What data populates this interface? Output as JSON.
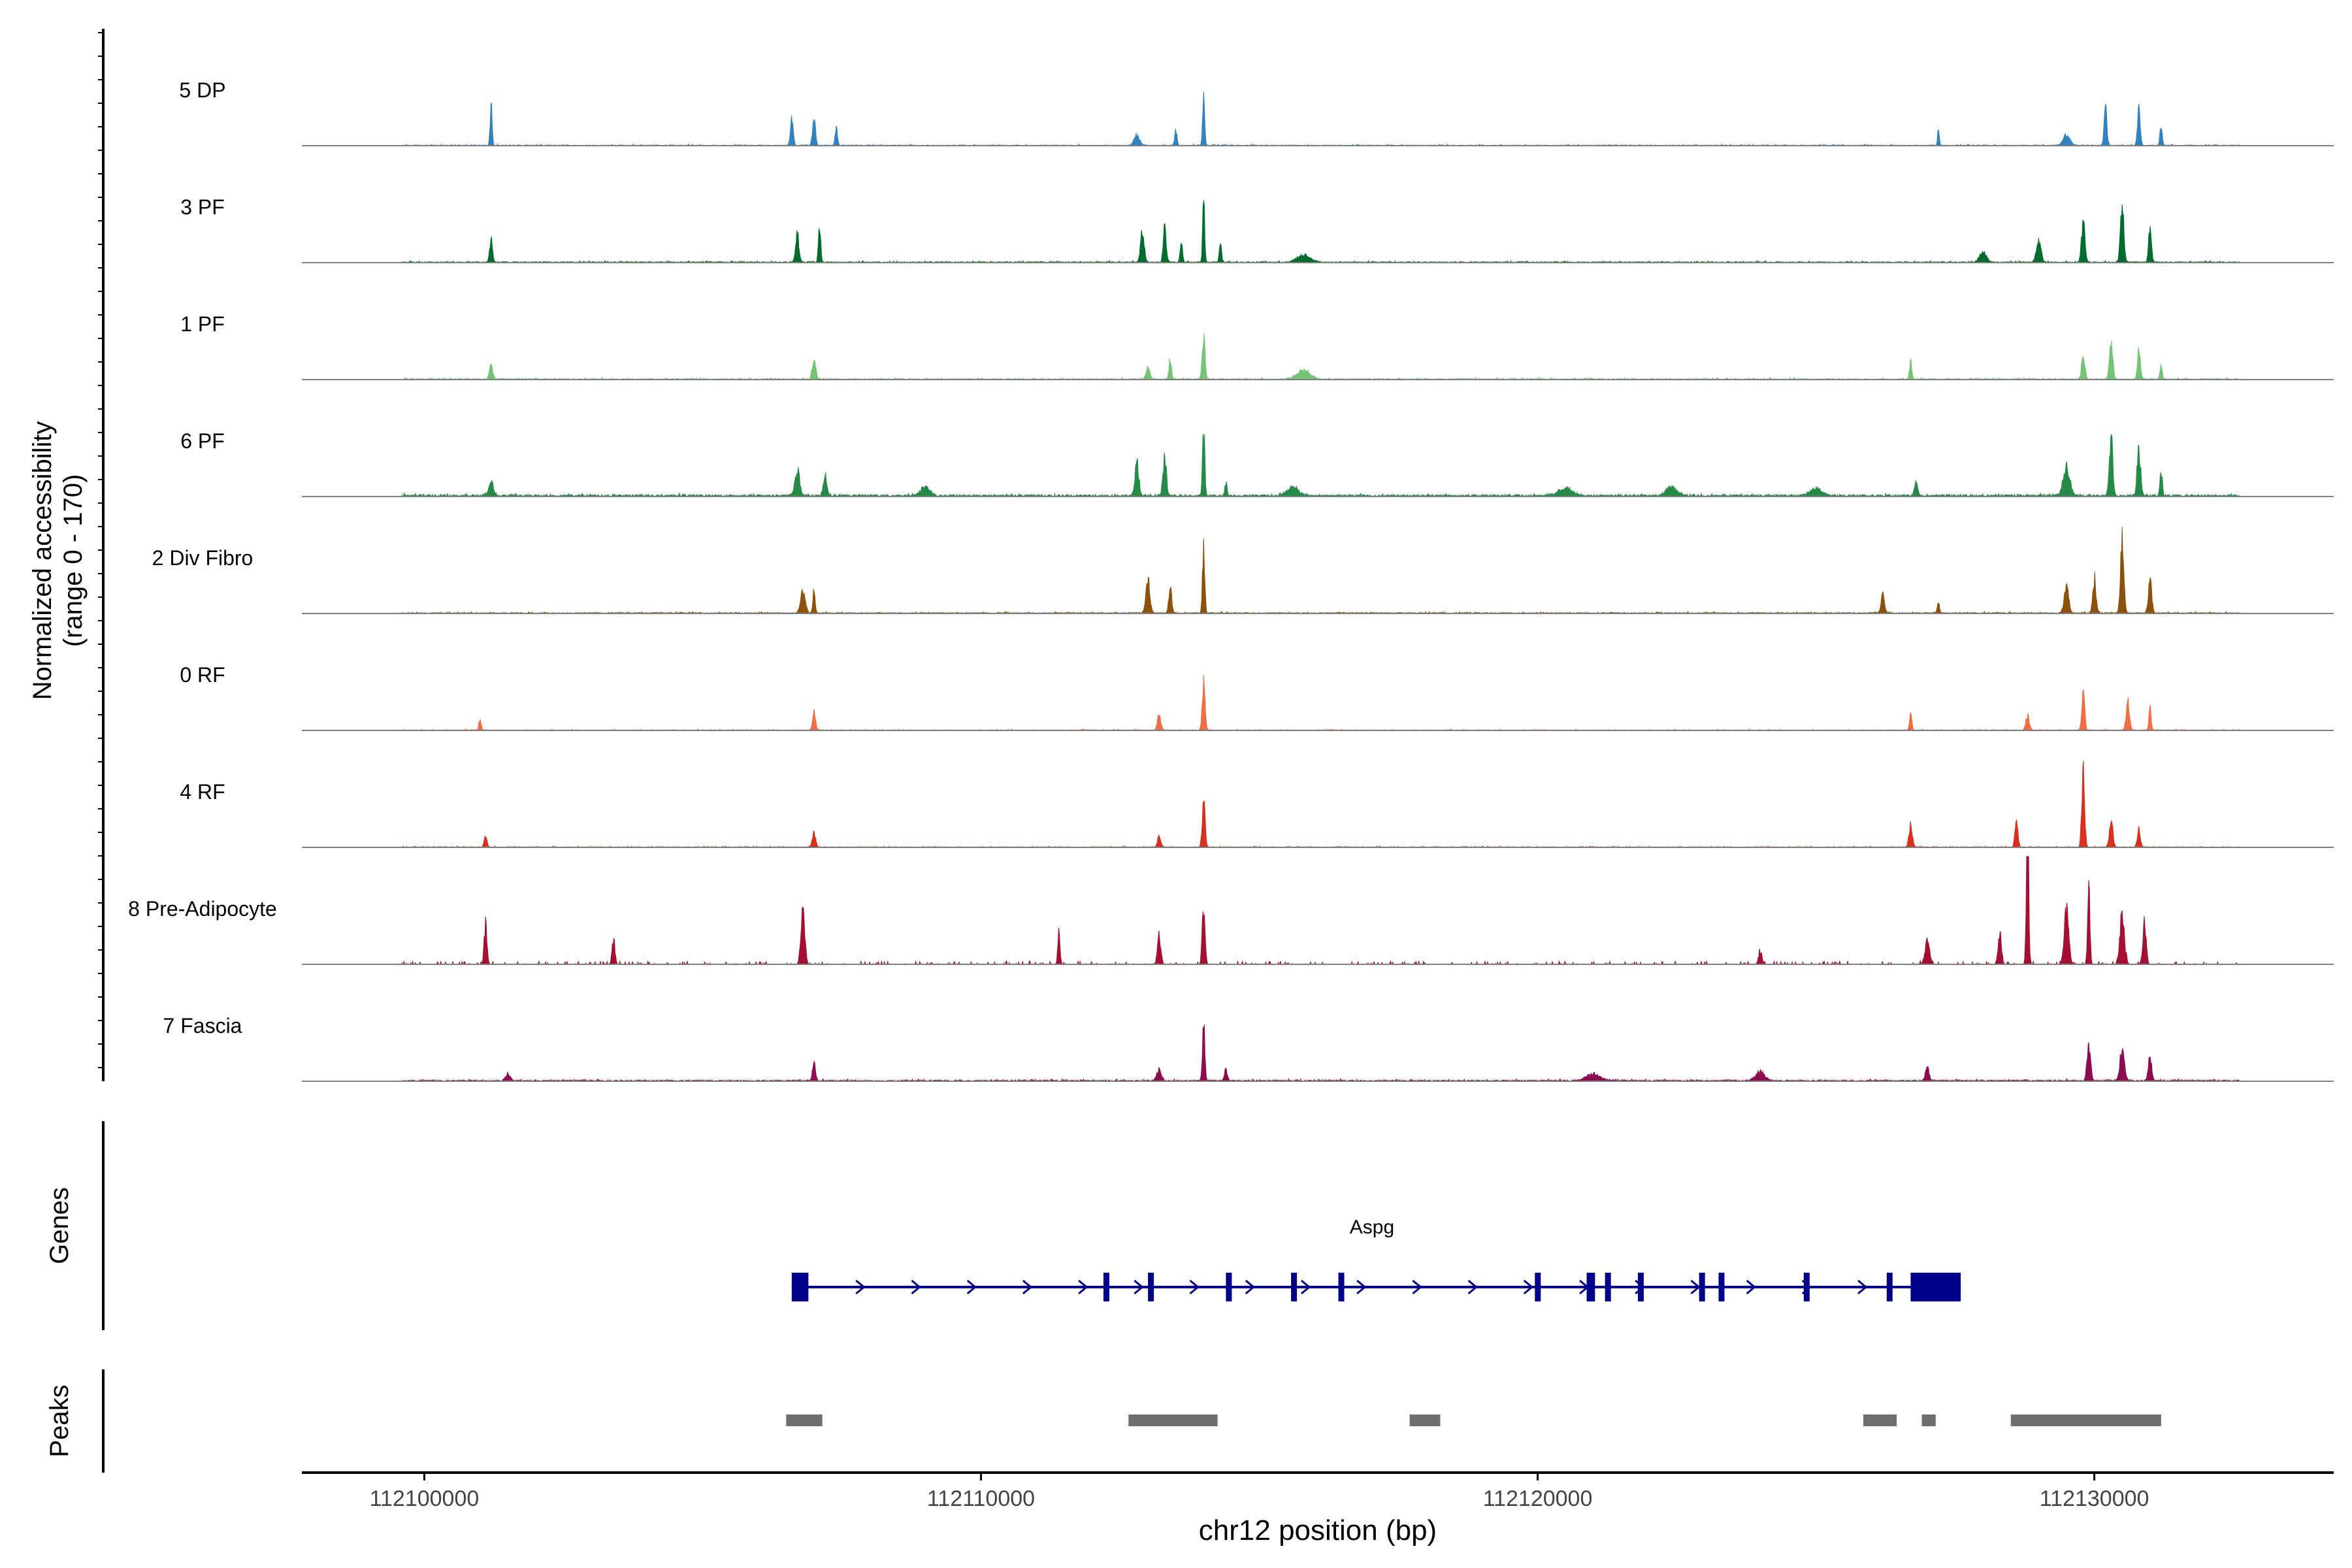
{
  "chart_data": {
    "type": "area",
    "chromosome": "chr12",
    "xlabel": "chr12 position (bp)",
    "ylabel_line1": "Normalized accessibility",
    "ylabel_line2": "(range 0 - 170)",
    "y_range": [
      0,
      170
    ],
    "x_range": [
      112097800,
      112134300
    ],
    "x_ticks": [
      112100000,
      112110000,
      112120000,
      112130000
    ],
    "x_tick_labels": [
      "112100000",
      "112110000",
      "112120000",
      "112130000"
    ],
    "data_extent": [
      112099600,
      112132600
    ],
    "genes_label": "Genes",
    "peaks_label": "Peaks",
    "tracks": [
      {
        "name": "5 DP",
        "color": "#3182BD",
        "base": 2,
        "noise": 3,
        "peaks": [
          [
            112101200,
            110,
            18
          ],
          [
            112106600,
            70,
            25
          ],
          [
            112107000,
            80,
            25
          ],
          [
            112107400,
            55,
            20
          ],
          [
            112112800,
            30,
            50
          ],
          [
            112113500,
            45,
            20
          ],
          [
            112114000,
            140,
            18
          ],
          [
            112127200,
            45,
            15
          ],
          [
            112129500,
            30,
            60
          ],
          [
            112130200,
            100,
            25
          ],
          [
            112130800,
            100,
            25
          ],
          [
            112131200,
            60,
            20
          ]
        ]
      },
      {
        "name": "3 PF",
        "color": "#006D2C",
        "base": 3,
        "noise": 3,
        "peaks": [
          [
            112101200,
            60,
            25
          ],
          [
            112106700,
            80,
            30
          ],
          [
            112107100,
            100,
            20
          ],
          [
            112112900,
            100,
            30
          ],
          [
            112113300,
            110,
            25
          ],
          [
            112113600,
            60,
            20
          ],
          [
            112114000,
            170,
            18
          ],
          [
            112114300,
            50,
            20
          ],
          [
            112115800,
            20,
            120
          ],
          [
            112128000,
            30,
            60
          ],
          [
            112129000,
            60,
            40
          ],
          [
            112129800,
            120,
            30
          ],
          [
            112130500,
            160,
            30
          ],
          [
            112131000,
            90,
            25
          ]
        ]
      },
      {
        "name": "1 PF",
        "color": "#74C476",
        "base": 3,
        "noise": 3,
        "peaks": [
          [
            112101200,
            40,
            30
          ],
          [
            112107000,
            60,
            30
          ],
          [
            112113000,
            40,
            30
          ],
          [
            112113400,
            60,
            20
          ],
          [
            112114000,
            120,
            25
          ],
          [
            112115800,
            25,
            120
          ],
          [
            112126700,
            50,
            20
          ],
          [
            112129800,
            60,
            30
          ],
          [
            112130300,
            110,
            30
          ],
          [
            112130800,
            90,
            25
          ],
          [
            112131200,
            40,
            20
          ]
        ]
      },
      {
        "name": "6 PF",
        "color": "#238B45",
        "base": 6,
        "noise": 4,
        "peaks": [
          [
            112101200,
            40,
            40
          ],
          [
            112106700,
            70,
            40
          ],
          [
            112107200,
            60,
            30
          ],
          [
            112109000,
            25,
            80
          ],
          [
            112112800,
            90,
            35
          ],
          [
            112113300,
            110,
            30
          ],
          [
            112114000,
            190,
            20
          ],
          [
            112114400,
            40,
            20
          ],
          [
            112115600,
            25,
            100
          ],
          [
            112120500,
            20,
            120
          ],
          [
            112122400,
            25,
            100
          ],
          [
            112125000,
            20,
            100
          ],
          [
            112126800,
            35,
            30
          ],
          [
            112129500,
            80,
            60
          ],
          [
            112130300,
            170,
            30
          ],
          [
            112130800,
            140,
            30
          ],
          [
            112131200,
            70,
            20
          ]
        ]
      },
      {
        "name": "2 Div Fibro",
        "color": "#8C510A",
        "base": 3,
        "noise": 3,
        "peaks": [
          [
            112106800,
            70,
            40
          ],
          [
            112107000,
            60,
            20
          ],
          [
            112113000,
            90,
            35
          ],
          [
            112113400,
            80,
            25
          ],
          [
            112114000,
            190,
            20
          ],
          [
            112126200,
            50,
            30
          ],
          [
            112127200,
            30,
            20
          ],
          [
            112129500,
            70,
            40
          ],
          [
            112130000,
            100,
            30
          ],
          [
            112130500,
            200,
            30
          ],
          [
            112131000,
            90,
            30
          ]
        ]
      },
      {
        "name": "0 RF",
        "color": "#F16D43",
        "base": 2,
        "noise": 2,
        "peaks": [
          [
            112101000,
            30,
            20
          ],
          [
            112107000,
            60,
            25
          ],
          [
            112113200,
            40,
            30
          ],
          [
            112114000,
            140,
            25
          ],
          [
            112126700,
            50,
            20
          ],
          [
            112128800,
            40,
            30
          ],
          [
            112129800,
            110,
            25
          ],
          [
            112130600,
            80,
            30
          ],
          [
            112131000,
            60,
            20
          ]
        ]
      },
      {
        "name": "4 RF",
        "color": "#D7301F",
        "base": 2,
        "noise": 2,
        "peaks": [
          [
            112101100,
            30,
            25
          ],
          [
            112107000,
            40,
            30
          ],
          [
            112113200,
            30,
            30
          ],
          [
            112114000,
            130,
            25
          ],
          [
            112126700,
            60,
            30
          ],
          [
            112128600,
            80,
            25
          ],
          [
            112129800,
            240,
            25
          ],
          [
            112130300,
            80,
            30
          ],
          [
            112130800,
            60,
            25
          ]
        ]
      },
      {
        "name": "8 Pre-Adipocyte",
        "color": "#A50F31",
        "base": 0,
        "noise": 10,
        "peaks": [
          [
            112101100,
            110,
            25
          ],
          [
            112103400,
            70,
            25
          ],
          [
            112106800,
            150,
            35
          ],
          [
            112111400,
            90,
            20
          ],
          [
            112113200,
            80,
            30
          ],
          [
            112114000,
            160,
            25
          ],
          [
            112124000,
            40,
            30
          ],
          [
            112127000,
            70,
            40
          ],
          [
            112128300,
            90,
            30
          ],
          [
            112128800,
            450,
            20
          ],
          [
            112129500,
            150,
            40
          ],
          [
            112129900,
            260,
            20
          ],
          [
            112130500,
            140,
            40
          ],
          [
            112130900,
            120,
            30
          ]
        ]
      },
      {
        "name": "7 Fascia",
        "color": "#8C0D4F",
        "base": 4,
        "noise": 3,
        "peaks": [
          [
            112101500,
            20,
            40
          ],
          [
            112107000,
            60,
            25
          ],
          [
            112113200,
            30,
            40
          ],
          [
            112114000,
            190,
            20
          ],
          [
            112114400,
            30,
            25
          ],
          [
            112121000,
            20,
            120
          ],
          [
            112124000,
            25,
            80
          ],
          [
            112127000,
            40,
            30
          ],
          [
            112129900,
            110,
            30
          ],
          [
            112130500,
            90,
            40
          ],
          [
            112131000,
            70,
            30
          ]
        ]
      }
    ],
    "gene": {
      "name": "Aspg",
      "color": "#00008B",
      "start": 112106600,
      "end": 112127600,
      "strand": "+",
      "exons": [
        [
          112106600,
          112106900
        ],
        [
          112112200,
          112112260
        ],
        [
          112113000,
          112113060
        ],
        [
          112114400,
          112114470
        ],
        [
          112115570,
          112115620
        ],
        [
          112116420,
          112116500
        ],
        [
          112119950,
          112120010
        ],
        [
          112120880,
          112121030
        ],
        [
          112121210,
          112121300
        ],
        [
          112121800,
          112121880
        ],
        [
          112122900,
          112122960
        ],
        [
          112123250,
          112123330
        ],
        [
          112124780,
          112124830
        ],
        [
          112126270,
          112126320
        ],
        [
          112126700,
          112127600
        ]
      ]
    },
    "peaks": [
      [
        112106500,
        112107150
      ],
      [
        112112650,
        112114250
      ],
      [
        112117700,
        112118250
      ],
      [
        112125850,
        112126450
      ],
      [
        112126900,
        112127150
      ],
      [
        112128500,
        112131200
      ]
    ]
  }
}
